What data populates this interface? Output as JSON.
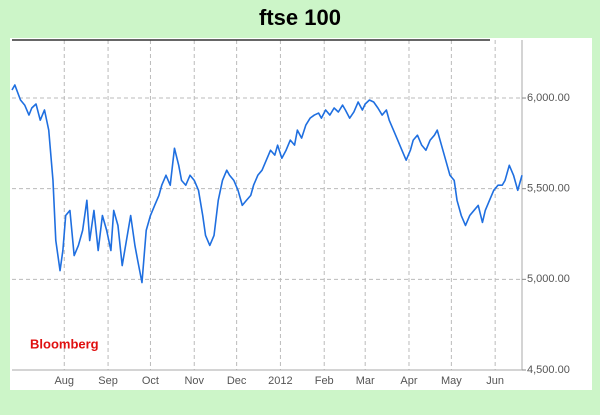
{
  "chart_data": {
    "type": "line",
    "title": "ftse 100",
    "annotation": "Bloomberg",
    "x": [
      9,
      11,
      15,
      18,
      21,
      23,
      26,
      29,
      32,
      35,
      38,
      40,
      43,
      45,
      47,
      50,
      53,
      56,
      59,
      62,
      64,
      67,
      70,
      73,
      76,
      79,
      81,
      84,
      87,
      90,
      93,
      96,
      98,
      101,
      104,
      107,
      110,
      113,
      115,
      118,
      121,
      124,
      127,
      129,
      132,
      135,
      138,
      141,
      144,
      146,
      149,
      152,
      155,
      158,
      161,
      163,
      166,
      169,
      172,
      175,
      178,
      180,
      183,
      186,
      189,
      192,
      195,
      197,
      200,
      203,
      206,
      209,
      211,
      214,
      217,
      220,
      223,
      226,
      228,
      231,
      234,
      237,
      240,
      243,
      245,
      248,
      251,
      254,
      257,
      259,
      262,
      265,
      268,
      271,
      274,
      276,
      279,
      282,
      285,
      288,
      291,
      293,
      296,
      299,
      302,
      305,
      308,
      310,
      313,
      316,
      319,
      322,
      324,
      327,
      330,
      333,
      336,
      339,
      342,
      344,
      347,
      350,
      353,
      356,
      358,
      361,
      364,
      367,
      370
    ],
    "series": [
      {
        "name": "FTSE 100",
        "color": "#1f6fe0",
        "values": [
          6044,
          6072,
          5989,
          5961,
          5906,
          5945,
          5967,
          5878,
          5934,
          5823,
          5546,
          5214,
          5048,
          5159,
          5352,
          5380,
          5131,
          5187,
          5270,
          5436,
          5214,
          5380,
          5159,
          5352,
          5270,
          5159,
          5380,
          5297,
          5076,
          5214,
          5352,
          5187,
          5103,
          4982,
          5270,
          5352,
          5408,
          5463,
          5519,
          5574,
          5519,
          5723,
          5629,
          5546,
          5519,
          5574,
          5546,
          5491,
          5352,
          5242,
          5187,
          5242,
          5436,
          5546,
          5602,
          5574,
          5546,
          5491,
          5408,
          5436,
          5463,
          5519,
          5574,
          5602,
          5657,
          5712,
          5685,
          5740,
          5668,
          5712,
          5768,
          5740,
          5823,
          5779,
          5851,
          5889,
          5906,
          5917,
          5889,
          5934,
          5906,
          5945,
          5923,
          5961,
          5934,
          5889,
          5923,
          5978,
          5934,
          5967,
          5989,
          5978,
          5945,
          5906,
          5934,
          5878,
          5823,
          5768,
          5712,
          5657,
          5712,
          5768,
          5795,
          5740,
          5712,
          5768,
          5795,
          5823,
          5740,
          5657,
          5574,
          5546,
          5436,
          5352,
          5297,
          5352,
          5380,
          5408,
          5314,
          5380,
          5436,
          5491,
          5519,
          5519,
          5546,
          5629,
          5574,
          5491,
          5574
        ]
      }
    ],
    "xlim": [
      9,
      370
    ],
    "xticks": [
      {
        "value": 46,
        "label": "Aug"
      },
      {
        "value": 77,
        "label": "Sep"
      },
      {
        "value": 107,
        "label": "Oct"
      },
      {
        "value": 138,
        "label": "Nov"
      },
      {
        "value": 168,
        "label": "Dec"
      },
      {
        "value": 199,
        "label": "2012"
      },
      {
        "value": 230,
        "label": "Feb"
      },
      {
        "value": 259,
        "label": "Mar"
      },
      {
        "value": 290,
        "label": "Apr"
      },
      {
        "value": 320,
        "label": "May"
      },
      {
        "value": 351,
        "label": "Jun"
      }
    ],
    "ylim": [
      4500,
      6320
    ],
    "yticks": [
      {
        "value": 4500,
        "label": "4,500.00"
      },
      {
        "value": 5000,
        "label": "5,000.00"
      },
      {
        "value": 5500,
        "label": "5,500.00"
      },
      {
        "value": 6000,
        "label": "6,000.00"
      }
    ],
    "grid": true
  }
}
